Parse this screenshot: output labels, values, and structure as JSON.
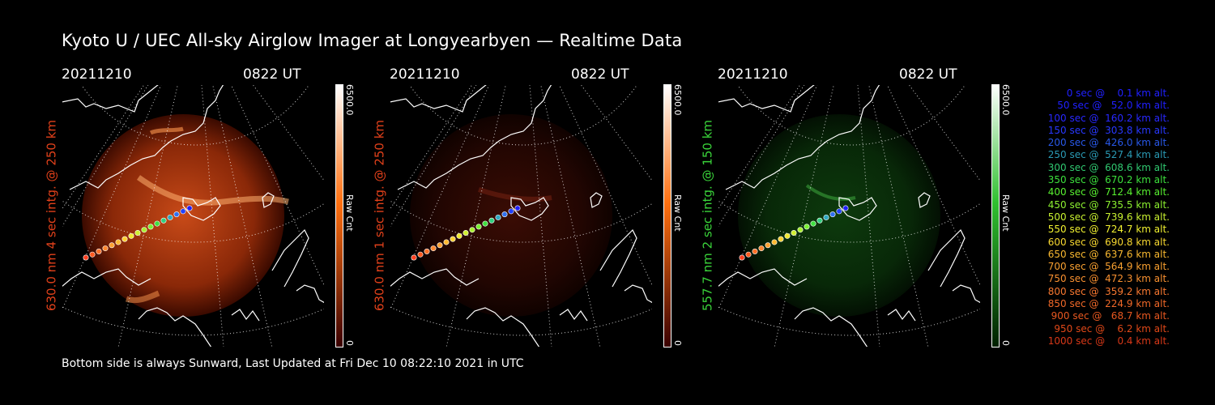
{
  "title": "Kyoto U / UEC All-sky Airglow Imager at Longyearbyen — Realtime Data",
  "panels": [
    {
      "date": "20211210",
      "time": "0822 UT",
      "label": "630.0 nm 4 sec intg. @ 250 km",
      "label_color": "#e0401a",
      "cb_max": "6500.0",
      "cb_min": "0",
      "cb_unit": "Raw Cnt",
      "cb_top": "#ffffff",
      "cb_mid": "#ff7010",
      "cb_bottom": "#3a0000"
    },
    {
      "date": "20211210",
      "time": "0822 UT",
      "label": "630.0 nm 1 sec intg. @ 250 km",
      "label_color": "#e0401a",
      "cb_max": "6500.0",
      "cb_min": "0",
      "cb_unit": "Raw Cnt",
      "cb_top": "#ffffff",
      "cb_mid": "#ff7010",
      "cb_bottom": "#3a0000"
    },
    {
      "date": "20211210",
      "time": "0822 UT",
      "label": "557.7 nm 2 sec intg. @ 150 km",
      "label_color": "#3ad43a",
      "cb_max": "6500.0",
      "cb_min": "0",
      "cb_unit": "Raw Cnt",
      "cb_top": "#ffffff",
      "cb_mid": "#30c030",
      "cb_bottom": "#002000"
    }
  ],
  "footer": "Bottom side is always Sunward, Last Updated at Fri Dec 10 08:22:10 2021 in UTC",
  "legend": [
    {
      "text": "0 sec @    0.1 km alt.",
      "color": "#2020ff"
    },
    {
      "text": "50 sec @   52.0 km alt.",
      "color": "#2020ff"
    },
    {
      "text": "100 sec @  160.2 km alt.",
      "color": "#2828ff"
    },
    {
      "text": "150 sec @  303.8 km alt.",
      "color": "#2838ff"
    },
    {
      "text": "200 sec @  426.0 km alt.",
      "color": "#2858e8"
    },
    {
      "text": "250 sec @  527.4 km alt.",
      "color": "#2a9ab4"
    },
    {
      "text": "300 sec @  608.6 km alt.",
      "color": "#30c870"
    },
    {
      "text": "350 sec @  670.2 km alt.",
      "color": "#3ce03c"
    },
    {
      "text": "400 sec @  712.4 km alt.",
      "color": "#58f030"
    },
    {
      "text": "450 sec @  735.5 km alt.",
      "color": "#8cf030"
    },
    {
      "text": "500 sec @  739.6 km alt.",
      "color": "#c8f030"
    },
    {
      "text": "550 sec @  724.7 km alt.",
      "color": "#f0f030"
    },
    {
      "text": "600 sec @  690.8 km alt.",
      "color": "#f8d830"
    },
    {
      "text": "650 sec @  637.6 km alt.",
      "color": "#f8b830"
    },
    {
      "text": "700 sec @  564.9 km alt.",
      "color": "#f8a030"
    },
    {
      "text": "750 sec @  472.3 km alt.",
      "color": "#f89030"
    },
    {
      "text": "800 sec @  359.2 km alt.",
      "color": "#f87830"
    },
    {
      "text": "850 sec @  224.9 km alt.",
      "color": "#f06828"
    },
    {
      "text": "900 sec @   68.7 km alt.",
      "color": "#e85820"
    },
    {
      "text": "950 sec @    6.2 km alt.",
      "color": "#e04818"
    },
    {
      "text": "1000 sec @    0.4 km alt.",
      "color": "#d83818"
    }
  ]
}
